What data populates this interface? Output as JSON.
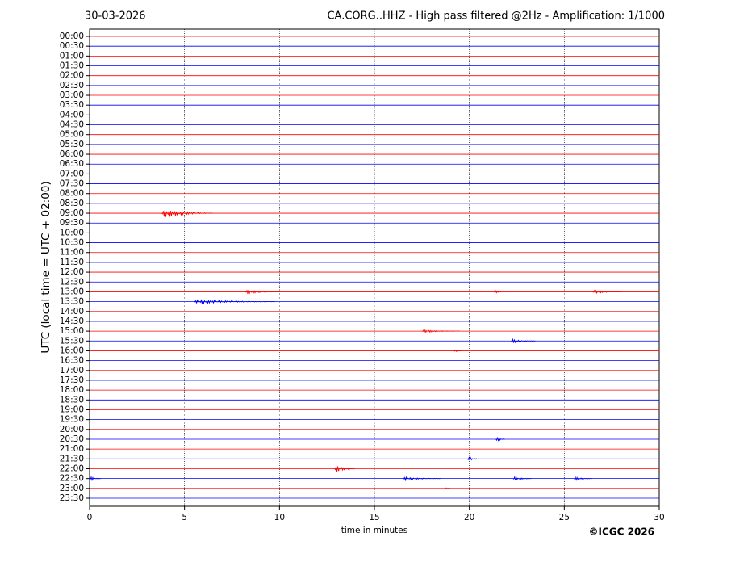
{
  "chart_data": {
    "type": "helicorder",
    "date": "30-03-2026",
    "title": "CA.CORG..HHZ - High pass filtered @2Hz - Amplification: 1/1000",
    "y_label": "UTC (local time = UTC + 02:00)",
    "x_label": "time in minutes",
    "credit": "©ICGC 2026",
    "categories": [
      "00:00",
      "00:30",
      "01:00",
      "01:30",
      "02:00",
      "02:30",
      "03:00",
      "03:30",
      "04:00",
      "04:30",
      "05:00",
      "05:30",
      "06:00",
      "06:30",
      "07:00",
      "07:30",
      "08:00",
      "08:30",
      "09:00",
      "09:30",
      "10:00",
      "10:30",
      "11:00",
      "11:30",
      "12:00",
      "12:30",
      "13:00",
      "13:30",
      "14:00",
      "14:30",
      "15:00",
      "15:30",
      "16:00",
      "16:30",
      "17:00",
      "17:30",
      "18:00",
      "18:30",
      "19:00",
      "19:30",
      "20:00",
      "20:30",
      "21:00",
      "21:30",
      "22:00",
      "22:30",
      "23:00",
      "23:30"
    ],
    "colors": [
      "#ff0000",
      "#0000ff"
    ],
    "xlim": [
      0,
      30
    ],
    "xticks": [
      0,
      5,
      10,
      15,
      20,
      25,
      30
    ],
    "grid": true,
    "events": [
      {
        "row": 18,
        "start": 3.8,
        "end": 6.5,
        "amplitude": 0.6
      },
      {
        "row": 26,
        "start": 8.2,
        "end": 10,
        "amplitude": 0.3
      },
      {
        "row": 26,
        "start": 21.3,
        "end": 21.7,
        "amplitude": 0.3
      },
      {
        "row": 26,
        "start": 26.5,
        "end": 28,
        "amplitude": 0.25
      },
      {
        "row": 27,
        "start": 5.5,
        "end": 9.8,
        "amplitude": 0.3
      },
      {
        "row": 30,
        "start": 17.5,
        "end": 19.5,
        "amplitude": 0.2
      },
      {
        "row": 31,
        "start": 22.2,
        "end": 23.5,
        "amplitude": 0.3
      },
      {
        "row": 32,
        "start": 19.2,
        "end": 19.7,
        "amplitude": 0.2
      },
      {
        "row": 41,
        "start": 21.4,
        "end": 21.9,
        "amplitude": 0.45
      },
      {
        "row": 43,
        "start": 19.9,
        "end": 20.5,
        "amplitude": 0.35
      },
      {
        "row": 44,
        "start": 12.9,
        "end": 14,
        "amplitude": 0.5
      },
      {
        "row": 45,
        "start": 0,
        "end": 0.6,
        "amplitude": 0.35
      },
      {
        "row": 45,
        "start": 16.5,
        "end": 18.5,
        "amplitude": 0.25
      },
      {
        "row": 45,
        "start": 22.3,
        "end": 23.3,
        "amplitude": 0.3
      },
      {
        "row": 45,
        "start": 25.5,
        "end": 26.5,
        "amplitude": 0.25
      },
      {
        "row": 46,
        "start": 18.7,
        "end": 19,
        "amplitude": 0.2
      }
    ]
  }
}
